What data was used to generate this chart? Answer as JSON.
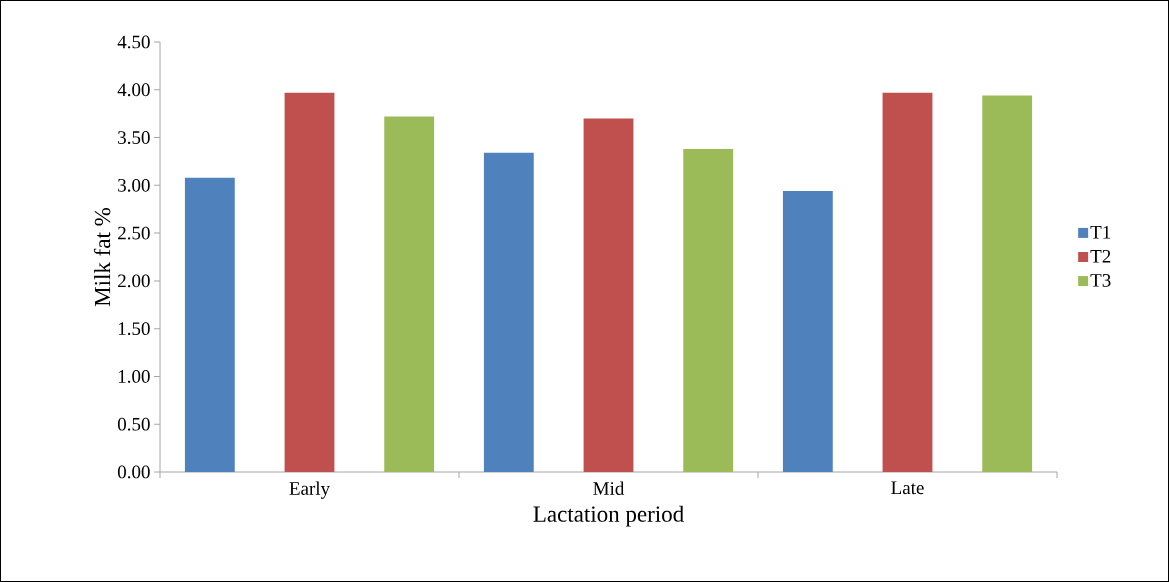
{
  "chart_data": {
    "type": "bar",
    "xlabel": "Lactation period",
    "ylabel": "Milk fat %",
    "categories": [
      "Early",
      "Mid",
      "Late"
    ],
    "series": [
      {
        "name": "T1",
        "color": "#4f81bd",
        "values": [
          3.08,
          3.34,
          2.94
        ]
      },
      {
        "name": "T2",
        "color": "#c0504d",
        "values": [
          3.97,
          3.7,
          3.97
        ]
      },
      {
        "name": "T3",
        "color": "#9bbb59",
        "values": [
          3.72,
          3.38,
          3.94
        ]
      }
    ],
    "ylim": [
      0,
      4.5
    ],
    "yticks": [
      {
        "value": 0,
        "label": "0.00"
      },
      {
        "value": 0.5,
        "label": "0.50"
      },
      {
        "value": 1,
        "label": "1.00"
      },
      {
        "value": 1.5,
        "label": "1.50"
      },
      {
        "value": 2,
        "label": "2.00"
      },
      {
        "value": 2.5,
        "label": "2.50"
      },
      {
        "value": 3,
        "label": "3.00"
      },
      {
        "value": 3.5,
        "label": "3.50"
      },
      {
        "value": 4,
        "label": "4.00"
      },
      {
        "value": 4.5,
        "label": "4.50"
      }
    ],
    "grid": false,
    "legend": "right"
  }
}
